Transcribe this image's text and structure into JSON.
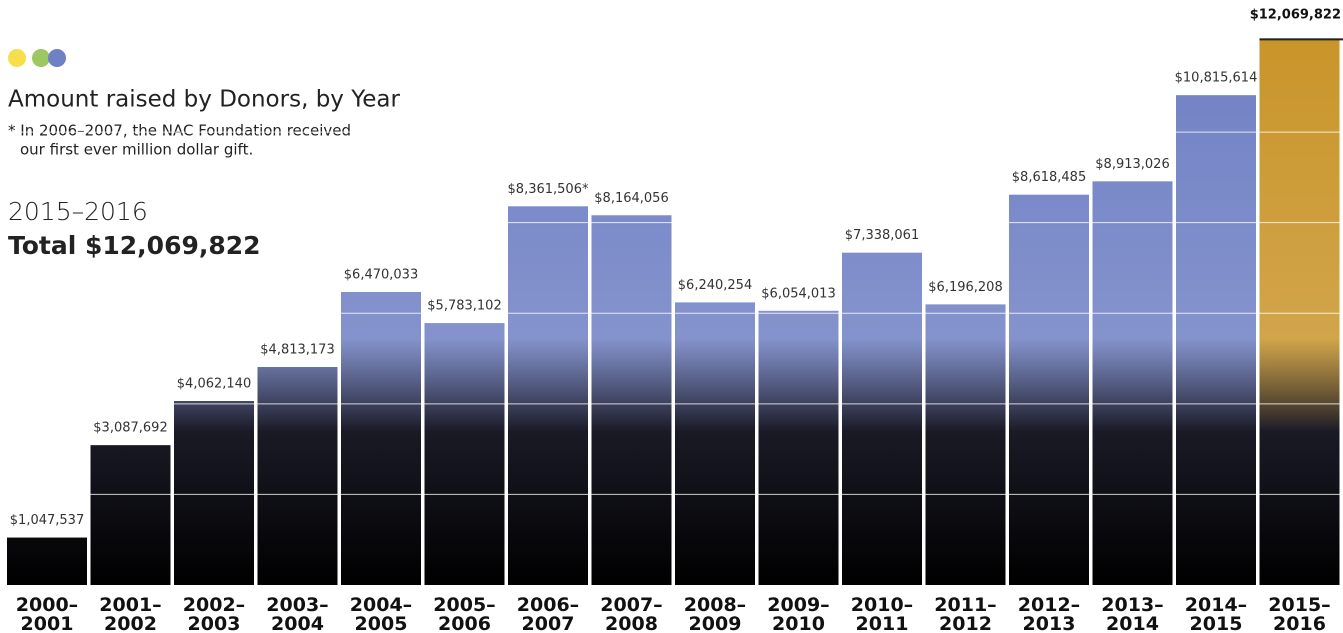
{
  "chart_data": {
    "type": "bar",
    "title": "Amount raised by Donors, by Year",
    "note": [
      "* In 2006–2007, the NAC Foundation received",
      "our first ever million dollar gift."
    ],
    "highlight": {
      "period": "2015–2016",
      "total": "Total $12,069,822"
    },
    "categories": [
      "2000–2001",
      "2001–2002",
      "2002–2003",
      "2003–2004",
      "2004–2005",
      "2005–2006",
      "2006–2007",
      "2007–2008",
      "2008–2009",
      "2009–2010",
      "2010–2011",
      "2011–2012",
      "2012–2013",
      "2013–2014",
      "2014–2015",
      "2015–2016"
    ],
    "values": [
      1047537,
      3087692,
      4062140,
      4813173,
      6470033,
      5783102,
      8361506,
      8164056,
      6240254,
      6054013,
      7338061,
      6196208,
      8618485,
      8913026,
      10815614,
      12069822
    ],
    "value_labels": [
      "$1,047,537",
      "$3,087,692",
      "$4,062,140",
      "$4,813,173",
      "$6,470,033",
      "$5,783,102",
      "$8,361,506*",
      "$8,164,056",
      "$6,240,254",
      "$6,054,013",
      "$7,338,061",
      "$6,196,208",
      "$8,618,485",
      "$8,913,026",
      "$10,815,614",
      "$12,069,822"
    ],
    "colors": [
      "#6f80c4",
      "#6f80c4",
      "#6f80c4",
      "#6f80c4",
      "#6f80c4",
      "#6f80c4",
      "#6f80c4",
      "#6f80c4",
      "#6f80c4",
      "#6f80c4",
      "#6f80c4",
      "#6f80c4",
      "#6f80c4",
      "#6f80c4",
      "#6f80c4",
      "#c9952a"
    ],
    "ylim": [
      0,
      12100000
    ],
    "yticks": [
      2000000,
      4000000,
      6000000,
      8000000,
      10000000
    ],
    "grid": true
  }
}
